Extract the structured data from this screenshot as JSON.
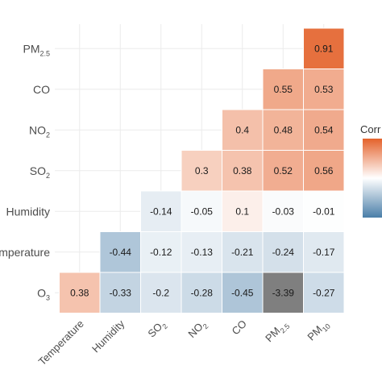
{
  "chart_data": {
    "type": "heatmap",
    "title": "",
    "legend": {
      "title": "Corr",
      "placement": "right",
      "colors": {
        "negative": "#4a7ea8",
        "zero": "#ffffff",
        "positive": "#e4622b",
        "out_of_range": "#7f7f7f"
      }
    },
    "x_categories": [
      {
        "main": "Temperature",
        "sub": ""
      },
      {
        "main": "Humidity",
        "sub": ""
      },
      {
        "main": "SO",
        "sub": "2"
      },
      {
        "main": "NO",
        "sub": "2"
      },
      {
        "main": "CO",
        "sub": ""
      },
      {
        "main": "PM",
        "sub": "2.5"
      },
      {
        "main": "PM",
        "sub": "10"
      }
    ],
    "y_categories": [
      {
        "main": "PM",
        "sub": "2.5"
      },
      {
        "main": "CO",
        "sub": ""
      },
      {
        "main": "NO",
        "sub": "2"
      },
      {
        "main": "SO",
        "sub": "2"
      },
      {
        "main": "Humidity",
        "sub": ""
      },
      {
        "main": "Temperature",
        "sub": ""
      },
      {
        "main": "O",
        "sub": "3"
      }
    ],
    "cells": [
      {
        "row": 0,
        "col": 6,
        "value": 0.91,
        "label": "0.91"
      },
      {
        "row": 1,
        "col": 5,
        "value": 0.55,
        "label": "0.55"
      },
      {
        "row": 1,
        "col": 6,
        "value": 0.53,
        "label": "0.53"
      },
      {
        "row": 2,
        "col": 4,
        "value": 0.4,
        "label": "0.4"
      },
      {
        "row": 2,
        "col": 5,
        "value": 0.48,
        "label": "0.48"
      },
      {
        "row": 2,
        "col": 6,
        "value": 0.54,
        "label": "0.54"
      },
      {
        "row": 3,
        "col": 3,
        "value": 0.3,
        "label": "0.3"
      },
      {
        "row": 3,
        "col": 4,
        "value": 0.38,
        "label": "0.38"
      },
      {
        "row": 3,
        "col": 5,
        "value": 0.52,
        "label": "0.52"
      },
      {
        "row": 3,
        "col": 6,
        "value": 0.56,
        "label": "0.56"
      },
      {
        "row": 4,
        "col": 2,
        "value": -0.14,
        "label": "-0.14"
      },
      {
        "row": 4,
        "col": 3,
        "value": -0.05,
        "label": "-0.05"
      },
      {
        "row": 4,
        "col": 4,
        "value": 0.1,
        "label": "0.1"
      },
      {
        "row": 4,
        "col": 5,
        "value": -0.03,
        "label": "-0.03"
      },
      {
        "row": 4,
        "col": 6,
        "value": -0.01,
        "label": "-0.01"
      },
      {
        "row": 5,
        "col": 1,
        "value": -0.44,
        "label": "-0.44"
      },
      {
        "row": 5,
        "col": 2,
        "value": -0.12,
        "label": "-0.12"
      },
      {
        "row": 5,
        "col": 3,
        "value": -0.13,
        "label": "-0.13"
      },
      {
        "row": 5,
        "col": 4,
        "value": -0.21,
        "label": "-0.21"
      },
      {
        "row": 5,
        "col": 5,
        "value": -0.24,
        "label": "-0.24"
      },
      {
        "row": 5,
        "col": 6,
        "value": -0.17,
        "label": "-0.17"
      },
      {
        "row": 6,
        "col": 0,
        "value": 0.38,
        "label": "0.38"
      },
      {
        "row": 6,
        "col": 1,
        "value": -0.33,
        "label": "-0.33"
      },
      {
        "row": 6,
        "col": 2,
        "value": -0.2,
        "label": "-0.2"
      },
      {
        "row": 6,
        "col": 3,
        "value": -0.28,
        "label": "-0.28"
      },
      {
        "row": 6,
        "col": 4,
        "value": -0.45,
        "label": "-0.45"
      },
      {
        "row": 6,
        "col": 5,
        "value": -3.39,
        "label": "-3.39"
      },
      {
        "row": 6,
        "col": 6,
        "value": -0.27,
        "label": "-0.27"
      }
    ],
    "color_scale": {
      "min": -1,
      "max": 1
    },
    "grid": true
  }
}
